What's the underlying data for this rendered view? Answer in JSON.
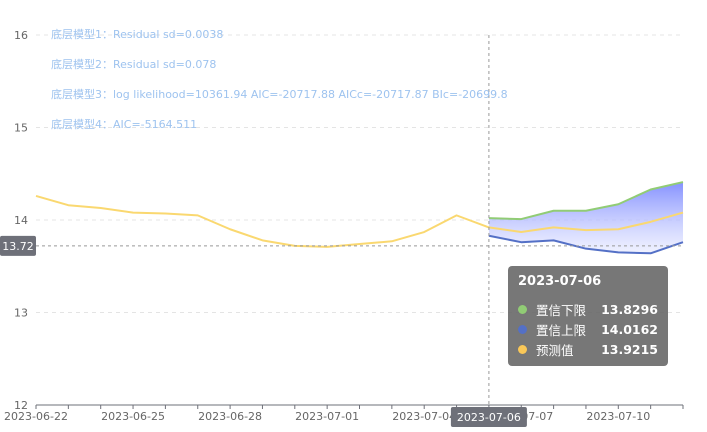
{
  "annotations": [
    "底层模型1：Residual sd=0.0038",
    "底层模型2：Residual sd=0.078",
    "底层模型3：log likelihood=10361.94 AIC=-20717.88 AICc=-20717.87 BIc=-20699.8",
    "底层模型4：AIC=-5164.511"
  ],
  "crosshair": {
    "x_label": "2023-07-06",
    "y_label": "13.72",
    "y_value": 13.72
  },
  "tooltip": {
    "title": "2023-07-06",
    "rows": [
      {
        "name": "置信下限",
        "value": "13.8296",
        "color": "#91cc75"
      },
      {
        "name": "置信上限",
        "value": "14.0162",
        "color": "#5470c6"
      },
      {
        "name": "预测值",
        "value": "13.9215",
        "color": "#fac858"
      }
    ]
  },
  "chart_data": {
    "type": "line",
    "ylim": [
      12,
      16
    ],
    "yticks": [
      12,
      13,
      14,
      15,
      16
    ],
    "x": [
      "2023-06-22",
      "2023-06-23",
      "2023-06-24",
      "2023-06-25",
      "2023-06-26",
      "2023-06-27",
      "2023-06-28",
      "2023-06-29",
      "2023-06-30",
      "2023-07-01",
      "2023-07-02",
      "2023-07-03",
      "2023-07-04",
      "2023-07-05",
      "2023-07-06",
      "2023-07-07",
      "2023-07-08",
      "2023-07-09",
      "2023-07-10",
      "2023-07-11",
      "2023-07-12"
    ],
    "xtick_labels": [
      "2023-06-22",
      "2023-06-25",
      "2023-06-28",
      "2023-07-01",
      "2023-07-04",
      "2023-07-07",
      "2023-07-10"
    ],
    "xtick_every": 3,
    "series": [
      {
        "color": "#fad870",
        "values": [
          14.26,
          14.16,
          14.13,
          14.08,
          14.07,
          14.05,
          13.9,
          13.78,
          13.72,
          13.71,
          13.74,
          13.77,
          13.87,
          14.05,
          13.92,
          13.87,
          13.92,
          13.89,
          13.9,
          13.98,
          14.08
        ]
      },
      {
        "color": "#91cc75",
        "values": [
          null,
          null,
          null,
          null,
          null,
          null,
          null,
          null,
          null,
          null,
          null,
          null,
          null,
          null,
          14.02,
          14.01,
          14.1,
          14.1,
          14.17,
          14.33,
          14.41
        ]
      },
      {
        "color": "#5470c6",
        "values": [
          null,
          null,
          null,
          null,
          null,
          null,
          null,
          null,
          null,
          null,
          null,
          null,
          null,
          null,
          13.83,
          13.76,
          13.78,
          13.69,
          13.65,
          13.64,
          13.76
        ]
      }
    ],
    "band": {
      "lower_series": 2,
      "upper_series": 1,
      "start_index": 14
    }
  }
}
